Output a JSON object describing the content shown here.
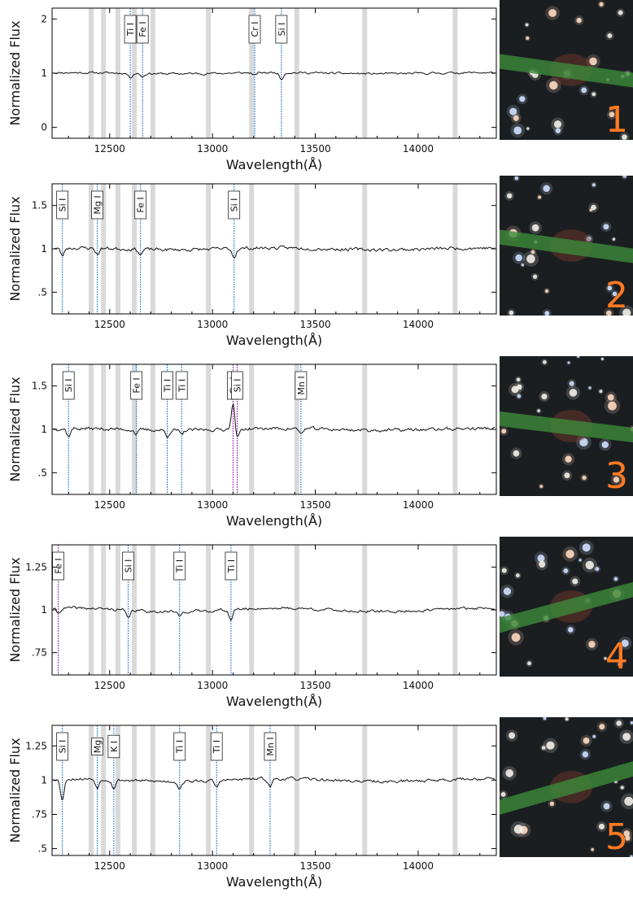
{
  "chart_data": [
    {
      "type": "line",
      "panel_label": "1",
      "xlabel": "Wavelength(Å)",
      "ylabel": "Normalized Flux",
      "xlim": [
        12220,
        14380
      ],
      "ylim": [
        -0.2,
        2.2
      ],
      "xticks": [
        12500,
        13000,
        13500,
        14000
      ],
      "xtick_labels": [
        "12500",
        "13000",
        "13500",
        "14000"
      ],
      "yticks": [
        0,
        1,
        2
      ],
      "ytick_labels": [
        "0",
        "1",
        "2"
      ],
      "baseline": 1.0,
      "noise": 0.035,
      "seed": 11,
      "lines": [
        {
          "label": "Ti I",
          "x": 12600,
          "color": "#2a7fd4",
          "depth": 0.08
        },
        {
          "label": "Fe I",
          "x": 12660,
          "color": "#2a7fd4",
          "depth": 0.06
        },
        {
          "label": "Cr I",
          "x": 13205,
          "color": "#2a7fd4",
          "depth": 0.05
        },
        {
          "label": "Si I",
          "x": 13335,
          "color": "#2a7fd4",
          "depth": 0.12
        }
      ],
      "grey_bands": [
        12410,
        12470,
        12540,
        12620,
        12710,
        12980,
        13190,
        13410,
        13740,
        14180
      ]
    },
    {
      "type": "line",
      "panel_label": "2",
      "xlabel": "Wavelength(Å)",
      "ylabel": "Normalized Flux",
      "xlim": [
        12220,
        14380
      ],
      "ylim": [
        0.25,
        1.75
      ],
      "xticks": [
        12500,
        13000,
        13500,
        14000
      ],
      "xtick_labels": [
        "12500",
        "13000",
        "13500",
        "14000"
      ],
      "yticks": [
        0.5,
        1,
        1.5
      ],
      "ytick_labels": [
        ".5",
        "1",
        "1.5"
      ],
      "baseline": 1.0,
      "noise": 0.035,
      "seed": 23,
      "lines": [
        {
          "label": "Si I",
          "x": 12270,
          "color": "#2a7fd4",
          "depth": 0.09
        },
        {
          "label": "Mg I",
          "x": 12440,
          "color": "#2a7fd4",
          "depth": 0.07
        },
        {
          "label": "Fe I",
          "x": 12650,
          "color": "#2a7fd4",
          "depth": 0.06
        },
        {
          "label": "Si I",
          "x": 13105,
          "color": "#2a7fd4",
          "depth": 0.1
        }
      ],
      "grey_bands": [
        12410,
        12470,
        12540,
        12620,
        12710,
        12980,
        13190,
        13410,
        13740,
        14180
      ]
    },
    {
      "type": "line",
      "panel_label": "3",
      "xlabel": "Wavelength(Å)",
      "ylabel": "Normalized Flux",
      "xlim": [
        12220,
        14380
      ],
      "ylim": [
        0.25,
        1.75
      ],
      "xticks": [
        12500,
        13000,
        13500,
        14000
      ],
      "xtick_labels": [
        "12500",
        "13000",
        "13500",
        "14000"
      ],
      "yticks": [
        0.5,
        1,
        1.5
      ],
      "ytick_labels": [
        ".5",
        "1",
        "1.5"
      ],
      "baseline": 1.0,
      "noise": 0.035,
      "seed": 37,
      "lines": [
        {
          "label": "Si I",
          "x": 12300,
          "color": "#2a7fd4",
          "depth": 0.09
        },
        {
          "label": "Fe I",
          "x": 12630,
          "color": "#2a7fd4",
          "depth": 0.05
        },
        {
          "label": "Ti I",
          "x": 12780,
          "color": "#2a7fd4",
          "depth": 0.07
        },
        {
          "label": "Ti I",
          "x": 12850,
          "color": "#2a7fd4",
          "depth": 0.06
        },
        {
          "label": "Ca I",
          "x": 13100,
          "color": "#9b2fb5",
          "depth": -0.3
        },
        {
          "label": "Si I",
          "x": 13120,
          "color": "#9b2fb5",
          "depth": 0.12
        },
        {
          "label": "Mn I",
          "x": 13430,
          "color": "#2a7fd4",
          "depth": 0.06
        }
      ],
      "grey_bands": [
        12410,
        12470,
        12540,
        12620,
        12710,
        12980,
        13190,
        13410,
        13740,
        14180
      ]
    },
    {
      "type": "line",
      "panel_label": "4",
      "xlabel": "Wavelength(Å)",
      "ylabel": "Normalized Flux",
      "xlim": [
        12220,
        14380
      ],
      "ylim": [
        0.62,
        1.38
      ],
      "xticks": [
        12500,
        13000,
        13500,
        14000
      ],
      "xtick_labels": [
        "12500",
        "13000",
        "13500",
        "14000"
      ],
      "yticks": [
        0.75,
        1,
        1.25
      ],
      "ytick_labels": [
        ".75",
        "1",
        "1.25"
      ],
      "baseline": 1.0,
      "noise": 0.015,
      "seed": 41,
      "lines": [
        {
          "label": "Fe I",
          "x": 12250,
          "color": "#9b2fb5",
          "depth": 0.03
        },
        {
          "label": "Si I",
          "x": 12590,
          "color": "#2a7fd4",
          "depth": 0.05
        },
        {
          "label": "Ti I",
          "x": 12840,
          "color": "#2a7fd4",
          "depth": 0.03
        },
        {
          "label": "Ti I",
          "x": 13090,
          "color": "#2a7fd4",
          "depth": 0.06
        }
      ],
      "grey_bands": [
        12410,
        12470,
        12540,
        12620,
        12710,
        12980,
        13190,
        13410,
        13740,
        14180
      ]
    },
    {
      "type": "line",
      "panel_label": "5",
      "xlabel": "Wavelength(Å)",
      "ylabel": "Normalized Flux",
      "xlim": [
        12220,
        14380
      ],
      "ylim": [
        0.45,
        1.4
      ],
      "xticks": [
        12500,
        13000,
        13500,
        14000
      ],
      "xtick_labels": [
        "12500",
        "13000",
        "13500",
        "14000"
      ],
      "yticks": [
        0.5,
        0.75,
        1,
        1.25
      ],
      "ytick_labels": [
        ".5",
        ".75",
        "1",
        "1.25"
      ],
      "baseline": 1.0,
      "noise": 0.02,
      "seed": 53,
      "lines": [
        {
          "label": "Si I",
          "x": 12270,
          "color": "#2a7fd4",
          "depth": 0.15
        },
        {
          "label": "Mg",
          "x": 12440,
          "color": "#2a7fd4",
          "depth": 0.06
        },
        {
          "label": "K I",
          "x": 12520,
          "color": "#2a7fd4",
          "depth": 0.06
        },
        {
          "label": "Ti I",
          "x": 12840,
          "color": "#2a7fd4",
          "depth": 0.05
        },
        {
          "label": "Ti I",
          "x": 13020,
          "color": "#2a7fd4",
          "depth": 0.05
        },
        {
          "label": "Mn I",
          "x": 13280,
          "color": "#2a7fd4",
          "depth": 0.06
        }
      ],
      "grey_bands": [
        12410,
        12470,
        12540,
        12620,
        12710,
        12980,
        13190,
        13410,
        13740,
        14180
      ]
    }
  ],
  "colors": {
    "band": "#d9d9d9",
    "slit": "#3c8a3a",
    "panel_number": "#ff7a22",
    "spectrum": "#111111"
  }
}
